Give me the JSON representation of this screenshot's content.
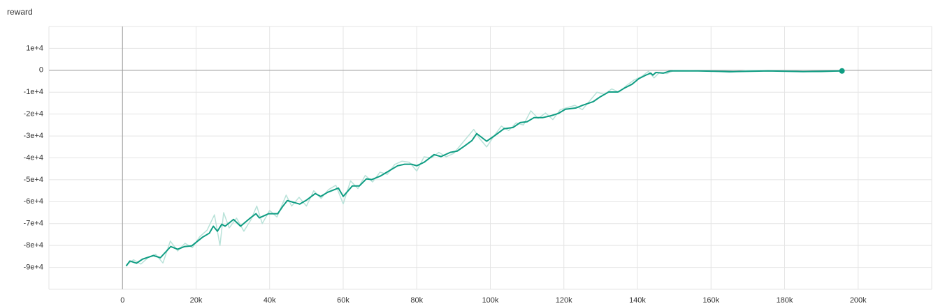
{
  "chart_data": {
    "type": "line",
    "title": "reward",
    "xlim": [
      -20000,
      220000
    ],
    "ylim": [
      -100000,
      20000
    ],
    "xticks": [
      0,
      {
        "value": 20000,
        "label": "20k"
      },
      {
        "value": 40000,
        "label": "40k"
      },
      {
        "value": 60000,
        "label": "60k"
      },
      {
        "value": 80000,
        "label": "80k"
      },
      {
        "value": 100000,
        "label": "100k"
      },
      {
        "value": 120000,
        "label": "120k"
      },
      {
        "value": 140000,
        "label": "140k"
      },
      {
        "value": 160000,
        "label": "160k"
      },
      {
        "value": 180000,
        "label": "180k"
      },
      {
        "value": 200000,
        "label": "200k"
      }
    ],
    "yticks": [
      {
        "value": 10000,
        "label": "1e+4"
      },
      0,
      {
        "value": -10000,
        "label": "-1e+4"
      },
      {
        "value": -20000,
        "label": "-2e+4"
      },
      {
        "value": -30000,
        "label": "-3e+4"
      },
      {
        "value": -40000,
        "label": "-4e+4"
      },
      {
        "value": -50000,
        "label": "-5e+4"
      },
      {
        "value": -60000,
        "label": "-6e+4"
      },
      {
        "value": -70000,
        "label": "-7e+4"
      },
      {
        "value": -80000,
        "label": "-8e+4"
      },
      {
        "value": -90000,
        "label": "-9e+4"
      }
    ],
    "grid": true,
    "series": [
      {
        "color": "#b9e2d9",
        "x": [
          1000,
          3000,
          5000,
          7000,
          9000,
          11000,
          13000,
          15000,
          17000,
          19000,
          21000,
          23000,
          25000,
          26500,
          27500,
          29000,
          31000,
          33000,
          35000,
          36500,
          38000,
          40000,
          42000,
          44500,
          46000,
          48000,
          50000,
          52000,
          54000,
          56000,
          58000,
          60000,
          62000,
          64000,
          66000,
          68000,
          70000,
          72000,
          74000,
          76000,
          78000,
          80000,
          82000,
          84000,
          86000,
          88000,
          90000,
          92000,
          94000,
          95500,
          97000,
          99000,
          101000,
          103000,
          105000,
          107000,
          109000,
          111000,
          113000,
          115000,
          117000,
          119000,
          121000,
          123000,
          125000,
          127000,
          129000,
          131000,
          133000,
          135000,
          137000,
          139000,
          141000,
          143000,
          144500,
          146000,
          148000,
          150000,
          160000,
          165000,
          170000,
          180000,
          190000,
          196000
        ],
        "values": [
          -89000,
          -86500,
          -88500,
          -85500,
          -84000,
          -88000,
          -78000,
          -82500,
          -79000,
          -81000,
          -76000,
          -73000,
          -66000,
          -80000,
          -65000,
          -72000,
          -67500,
          -73500,
          -68000,
          -62000,
          -70000,
          -64000,
          -67000,
          -57000,
          -62000,
          -58000,
          -62000,
          -55000,
          -58500,
          -54500,
          -52500,
          -61000,
          -50500,
          -54000,
          -48000,
          -51000,
          -46500,
          -47500,
          -43000,
          -41500,
          -42000,
          -46000,
          -39500,
          -40000,
          -37500,
          -39500,
          -38000,
          -34000,
          -30000,
          -27000,
          -31000,
          -35000,
          -30000,
          -25500,
          -27500,
          -24000,
          -25000,
          -18500,
          -22000,
          -19500,
          -22500,
          -18000,
          -17000,
          -16000,
          -18000,
          -14000,
          -10000,
          -11000,
          -8500,
          -10000,
          -7000,
          -4500,
          -3000,
          -500,
          -3500,
          -1000,
          -1500,
          0,
          -300,
          -1000,
          0,
          -300,
          -800,
          -200
        ]
      },
      {
        "color": "#0f9d83",
        "x": [
          1000,
          2000,
          3800,
          5500,
          8400,
          10300,
          13100,
          15000,
          16900,
          18800,
          21700,
          23600,
          24700,
          25800,
          27000,
          27900,
          30200,
          32100,
          35000,
          36300,
          37200,
          39700,
          42200,
          43500,
          44800,
          48200,
          50100,
          52400,
          53900,
          55800,
          58700,
          60000,
          62500,
          64400,
          66300,
          67800,
          70100,
          72000,
          74800,
          76700,
          78600,
          80000,
          82000,
          84700,
          86600,
          89100,
          91000,
          92900,
          95000,
          96300,
          99000,
          101400,
          103700,
          106200,
          108100,
          110000,
          111900,
          114300,
          116600,
          118500,
          120400,
          123300,
          125200,
          128000,
          129900,
          132200,
          134700,
          136600,
          138500,
          140400,
          142300,
          143600,
          144200,
          145000,
          147000,
          148900,
          156500,
          166000,
          175500,
          185000,
          195600
        ],
        "values": [
          -89400,
          -87100,
          -88100,
          -86200,
          -84600,
          -85600,
          -80500,
          -81700,
          -80500,
          -80200,
          -76300,
          -74400,
          -71200,
          -73500,
          -70300,
          -71200,
          -68100,
          -71200,
          -67100,
          -65500,
          -67400,
          -65500,
          -65500,
          -62300,
          -59500,
          -61100,
          -59200,
          -56300,
          -57600,
          -55700,
          -53800,
          -57600,
          -52800,
          -52800,
          -49600,
          -49900,
          -48300,
          -46400,
          -43600,
          -42900,
          -42900,
          -43600,
          -42000,
          -38500,
          -39400,
          -37500,
          -36900,
          -34700,
          -32100,
          -28900,
          -32400,
          -29600,
          -26700,
          -26100,
          -23900,
          -23500,
          -21600,
          -21600,
          -20700,
          -19700,
          -17800,
          -17200,
          -15900,
          -14300,
          -12100,
          -9900,
          -9900,
          -8000,
          -6400,
          -3800,
          -2200,
          -1300,
          -2200,
          -1000,
          -1300,
          -300,
          -300,
          -600,
          -300,
          -600,
          -300
        ]
      }
    ]
  }
}
